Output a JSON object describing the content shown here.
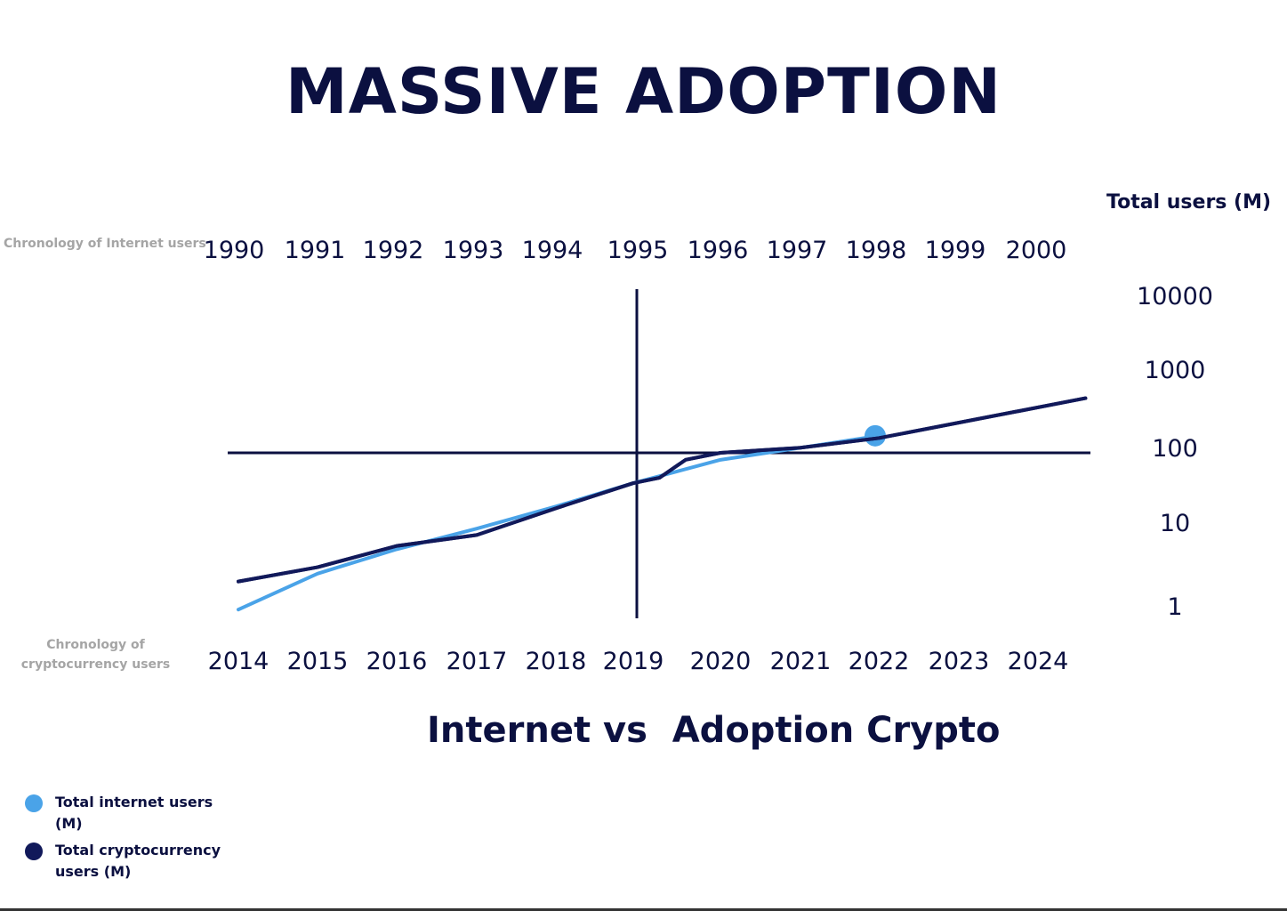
{
  "page": {
    "title": "MASSIVE ADOPTION",
    "subtitle": "Internet vs  Adoption Crypto"
  },
  "colors": {
    "internet": "#4aa3e8",
    "crypto": "#11195a",
    "axis": "#0b1040",
    "muted_label": "#a5a5a5"
  },
  "chart_data": {
    "type": "line",
    "title": "Internet vs  Adoption Crypto",
    "ylabel": "Total users (M)",
    "yscale": "log",
    "ylim": [
      1,
      10000
    ],
    "y_ticks": [
      "10000",
      "1000",
      "100",
      "10",
      "1"
    ],
    "y_tick_values": [
      10000,
      1000,
      100,
      10,
      1
    ],
    "x_top_label": "Chronology of Internet users",
    "x_top_ticks": [
      "1990",
      "1991",
      "1992",
      "1993",
      "1994",
      "1995",
      "1996",
      "1997",
      "1998",
      "1999",
      "2000"
    ],
    "x_bottom_label": "Chronology of cryptocurrency users",
    "x_bottom_ticks": [
      "2014",
      "2015",
      "2016",
      "2017",
      "2018",
      "2019",
      "2020",
      "2021",
      "2022",
      "2023",
      "2024"
    ],
    "reference_lines": {
      "horizontal_value": 100,
      "vertical_year": 2019
    },
    "grid": false,
    "legend_position": "bottom-left",
    "series": [
      {
        "name": "Total internet users (M)",
        "color_key": "internet",
        "x": [
          2014,
          2015,
          2016,
          2017,
          2018,
          2019,
          2020,
          2021,
          2022
        ],
        "values": [
          0.9,
          2.5,
          5,
          9,
          18,
          38,
          80,
          115,
          160
        ],
        "end_marker": true
      },
      {
        "name": "Total cryptocurrency users (M)",
        "color_key": "crypto",
        "x": [
          2014,
          2015,
          2016,
          2017,
          2018,
          2019,
          2019.3,
          2019.6,
          2020,
          2021,
          2022,
          2024.6
        ],
        "values": [
          2,
          3,
          5.5,
          7.5,
          17,
          38,
          45,
          80,
          100,
          115,
          150,
          450
        ]
      }
    ]
  }
}
